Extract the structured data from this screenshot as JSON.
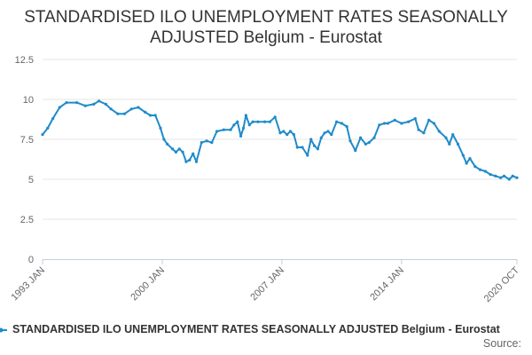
{
  "title": {
    "line1": "STANDARDISED ILO UNEMPLOYMENT RATES SEASONALLY",
    "line2": "ADJUSTED Belgium - Eurostat"
  },
  "legend": {
    "label": "STANDARDISED ILO UNEMPLOYMENT RATES SEASONALLY ADJUSTED Belgium - Eurostat"
  },
  "source": {
    "label": "Source:"
  },
  "colors": {
    "series": "#1f8bc9",
    "grid": "#e6e6e6",
    "axis": "#c0d0e0"
  },
  "chart_data": {
    "type": "line",
    "title": "STANDARDISED ILO UNEMPLOYMENT RATES SEASONALLY ADJUSTED Belgium - Eurostat",
    "xlabel": "",
    "ylabel": "",
    "ylim": [
      0,
      12.5
    ],
    "yticks": [
      "0",
      "2.5",
      "5",
      "7.5",
      "10",
      "12.5"
    ],
    "yticks_values": [
      0,
      2.5,
      5,
      7.5,
      10,
      12.5
    ],
    "xlim": [
      1993.0,
      2020.75
    ],
    "xticks": [
      "1993 JAN",
      "2000 JAN",
      "2007 JAN",
      "2014 JAN",
      "2020 OCT"
    ],
    "xticks_values": [
      1993.0,
      2000.0,
      2007.0,
      2014.0,
      2020.75
    ],
    "series": [
      {
        "name": "STANDARDISED ILO UNEMPLOYMENT RATES SEASONALLY ADJUSTED Belgium - Eurostat",
        "x": [
          1993.0,
          1993.3,
          1993.6,
          1994.0,
          1994.4,
          1995.0,
          1995.5,
          1996.0,
          1996.3,
          1996.7,
          1997.0,
          1997.4,
          1997.8,
          1998.2,
          1998.6,
          1999.0,
          1999.3,
          1999.6,
          1999.9,
          2000.1,
          2000.3,
          2000.6,
          2000.8,
          2001.0,
          2001.2,
          2001.4,
          2001.6,
          2001.8,
          2002.0,
          2002.3,
          2002.6,
          2002.9,
          2003.2,
          2003.6,
          2004.0,
          2004.2,
          2004.4,
          2004.6,
          2004.75,
          2004.9,
          2005.1,
          2005.3,
          2005.6,
          2006.0,
          2006.3,
          2006.6,
          2006.9,
          2007.1,
          2007.3,
          2007.5,
          2007.7,
          2007.9,
          2008.2,
          2008.5,
          2008.7,
          2008.9,
          2009.1,
          2009.3,
          2009.5,
          2009.7,
          2009.9,
          2010.2,
          2010.5,
          2010.8,
          2011.0,
          2011.3,
          2011.6,
          2011.9,
          2012.1,
          2012.4,
          2012.7,
          2013.0,
          2013.2,
          2013.6,
          2014.0,
          2014.4,
          2014.8,
          2015.0,
          2015.3,
          2015.6,
          2015.9,
          2016.2,
          2016.6,
          2016.8,
          2017.0,
          2017.3,
          2017.6,
          2017.8,
          2018.0,
          2018.3,
          2018.6,
          2018.9,
          2019.2,
          2019.5,
          2019.8,
          2020.0,
          2020.3,
          2020.5,
          2020.75
        ],
        "y": [
          7.8,
          8.2,
          8.8,
          9.5,
          9.8,
          9.8,
          9.6,
          9.7,
          9.9,
          9.7,
          9.4,
          9.1,
          9.1,
          9.4,
          9.5,
          9.2,
          9.0,
          9.0,
          8.2,
          7.5,
          7.2,
          6.9,
          6.7,
          6.9,
          6.7,
          6.1,
          6.2,
          6.6,
          6.1,
          7.3,
          7.4,
          7.3,
          8.0,
          8.1,
          8.1,
          8.4,
          8.6,
          7.7,
          8.2,
          9.0,
          8.4,
          8.6,
          8.6,
          8.6,
          8.6,
          8.9,
          7.9,
          8.0,
          7.8,
          8.0,
          7.8,
          7.0,
          7.0,
          6.5,
          7.5,
          7.1,
          6.9,
          7.6,
          7.9,
          8.0,
          7.8,
          8.6,
          8.5,
          8.3,
          7.4,
          6.8,
          7.6,
          7.2,
          7.3,
          7.6,
          8.4,
          8.5,
          8.5,
          8.7,
          8.5,
          8.6,
          8.8,
          8.1,
          7.9,
          8.7,
          8.5,
          8.0,
          7.6,
          7.2,
          7.8,
          7.2,
          6.5,
          6.0,
          6.3,
          5.8,
          5.6,
          5.5,
          5.3,
          5.2,
          5.1,
          5.2,
          5.0,
          5.2,
          5.1
        ]
      }
    ],
    "legend_position": "bottom",
    "grid": "horizontal"
  }
}
